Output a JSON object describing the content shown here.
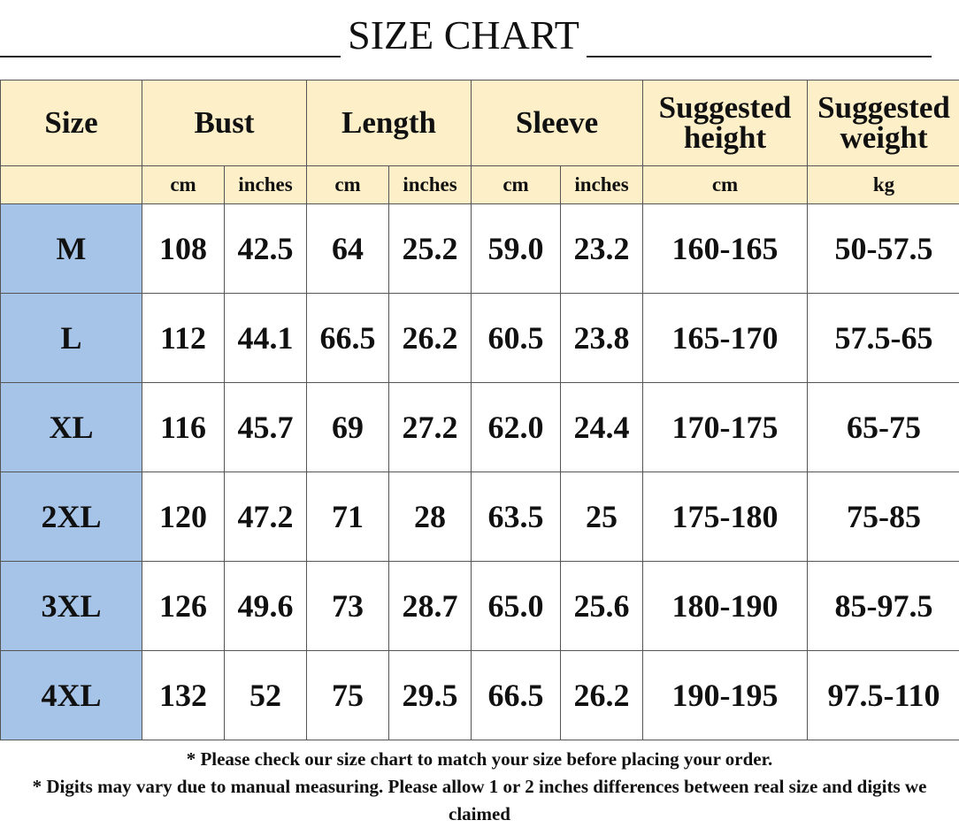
{
  "title": "SIZE CHART",
  "table": {
    "header": [
      "Size",
      "Bust",
      "Length",
      "Sleeve",
      "Suggested height",
      "Suggested weight"
    ],
    "units": [
      "cm",
      "inches",
      "cm",
      "inches",
      "cm",
      "inches",
      "cm",
      "kg"
    ],
    "rows": [
      [
        "M",
        "108",
        "42.5",
        "64",
        "25.2",
        "59.0",
        "23.2",
        "160-165",
        "50-57.5"
      ],
      [
        "L",
        "112",
        "44.1",
        "66.5",
        "26.2",
        "60.5",
        "23.8",
        "165-170",
        "57.5-65"
      ],
      [
        "XL",
        "116",
        "45.7",
        "69",
        "27.2",
        "62.0",
        "24.4",
        "170-175",
        "65-75"
      ],
      [
        "2XL",
        "120",
        "47.2",
        "71",
        "28",
        "63.5",
        "25",
        "175-180",
        "75-85"
      ],
      [
        "3XL",
        "126",
        "49.6",
        "73",
        "28.7",
        "65.0",
        "25.6",
        "180-190",
        "85-97.5"
      ],
      [
        "4XL",
        "132",
        "52",
        "75",
        "29.5",
        "66.5",
        "26.2",
        "190-195",
        "97.5-110"
      ]
    ]
  },
  "notes": [
    "* Please check our size chart to match your size before placing your order.",
    "* Digits may vary due to manual measuring. Please allow 1 or 2 inches differences between real size and digits we claimed"
  ]
}
